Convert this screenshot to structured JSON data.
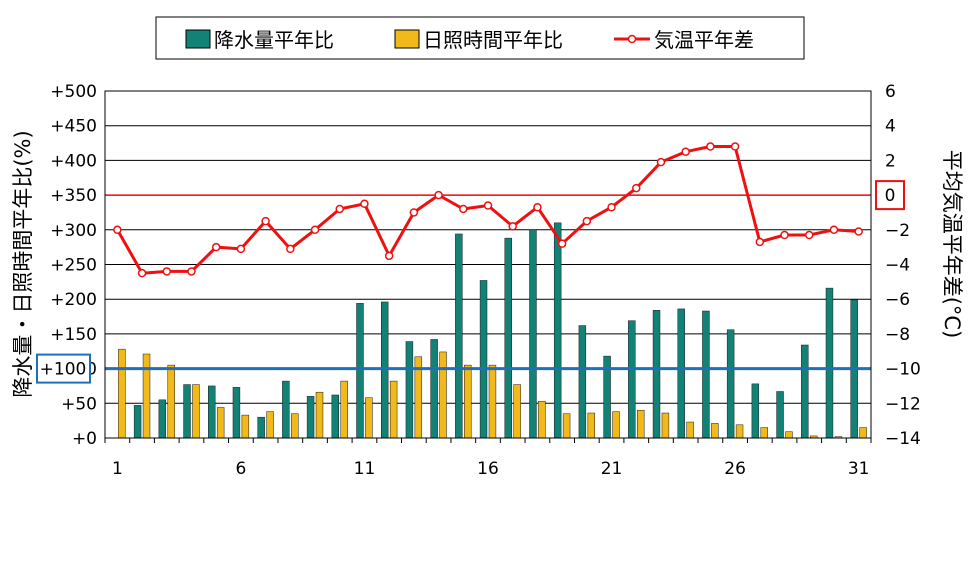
{
  "chart_data": {
    "type": "bar",
    "title": "",
    "categories": [
      "1",
      "2",
      "3",
      "4",
      "5",
      "6",
      "7",
      "8",
      "9",
      "10",
      "11",
      "12",
      "13",
      "14",
      "15",
      "16",
      "17",
      "18",
      "19",
      "20",
      "21",
      "22",
      "23",
      "24",
      "25",
      "26",
      "27",
      "28",
      "29",
      "30",
      "31"
    ],
    "x_tick_labels": [
      "1",
      "6",
      "11",
      "16",
      "21",
      "26",
      "31"
    ],
    "series": [
      {
        "name": "降水量平年比",
        "type": "bar",
        "axis": "left",
        "values": [
          0,
          47,
          55,
          77,
          75,
          73,
          30,
          82,
          60,
          62,
          194,
          196,
          139,
          142,
          294,
          227,
          288,
          300,
          310,
          162,
          118,
          169,
          184,
          186,
          183,
          156,
          78,
          67,
          134,
          216,
          199
        ]
      },
      {
        "name": "日照時間平年比",
        "type": "bar",
        "axis": "left",
        "values": [
          128,
          121,
          105,
          77,
          44,
          33,
          38,
          35,
          66,
          82,
          58,
          82,
          117,
          124,
          105,
          105,
          77,
          53,
          35,
          36,
          38,
          40,
          36,
          23,
          21,
          19,
          15,
          9,
          3,
          2,
          15
        ]
      },
      {
        "name": "気温平年差",
        "type": "line",
        "axis": "right",
        "values": [
          -2.0,
          -4.5,
          -4.4,
          -4.4,
          -3.0,
          -3.1,
          -1.5,
          -3.1,
          -2.0,
          -0.8,
          -0.5,
          -3.5,
          -1.0,
          0.0,
          -0.8,
          -0.6,
          -1.8,
          -0.7,
          -2.8,
          -1.5,
          -0.7,
          0.4,
          1.9,
          2.5,
          2.8,
          2.8,
          -2.7,
          -2.3,
          -2.3,
          -2.0,
          -2.1
        ]
      }
    ],
    "left_axis": {
      "label": "降水量・日照時間平年比(%)",
      "ylim": [
        0,
        500
      ],
      "tick_values": [
        0,
        50,
        100,
        150,
        200,
        250,
        300,
        350,
        400,
        450,
        500
      ],
      "tick_labels": [
        "+0",
        "+50",
        "+100",
        "+150",
        "+200",
        "+250",
        "+300",
        "+350",
        "+400",
        "+450",
        "+500"
      ],
      "reference_value": 100,
      "reference_label": "+100",
      "reference_color": "#1f6fbf"
    },
    "right_axis": {
      "label": "平均気温平年差(°C)",
      "ylim": [
        -14,
        6
      ],
      "tick_values": [
        -14,
        -12,
        -10,
        -8,
        -6,
        -4,
        -2,
        0,
        2,
        4,
        6
      ],
      "tick_labels": [
        "−14",
        "−12",
        "−10",
        "−8",
        "−6",
        "−4",
        "−2",
        "0",
        "2",
        "4",
        "6"
      ],
      "reference_value": 0,
      "reference_label": "0",
      "reference_color": "#ee1111"
    },
    "grid": true,
    "legend": "top",
    "colors": {
      "precip": "#138276",
      "sunshine": "#f2b91b",
      "temp": "#ee1111"
    }
  }
}
